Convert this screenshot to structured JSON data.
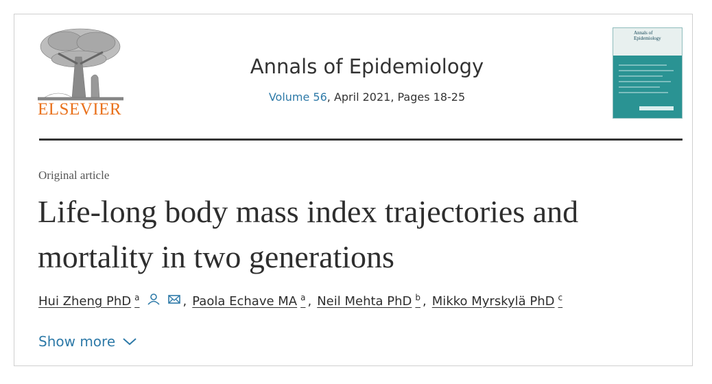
{
  "header": {
    "publisher": "ELSEVIER",
    "journal": "Annals of Epidemiology",
    "volume": "Volume 56",
    "issue_info": ", April 2021, Pages 18-25",
    "cover_title": "Annals of Epidemiology"
  },
  "article": {
    "type": "Original article",
    "title": "Life-long body mass index trajectories and mortality in two generations",
    "authors": [
      {
        "name": "Hui Zheng PhD",
        "affiliation": "a"
      },
      {
        "name": "Paola Echave MA",
        "affiliation": "a"
      },
      {
        "name": "Neil Mehta PhD",
        "affiliation": "b"
      },
      {
        "name": "Mikko Myrskylä PhD",
        "affiliation": "c"
      }
    ],
    "author_separator": ",",
    "show_more": "Show more"
  }
}
